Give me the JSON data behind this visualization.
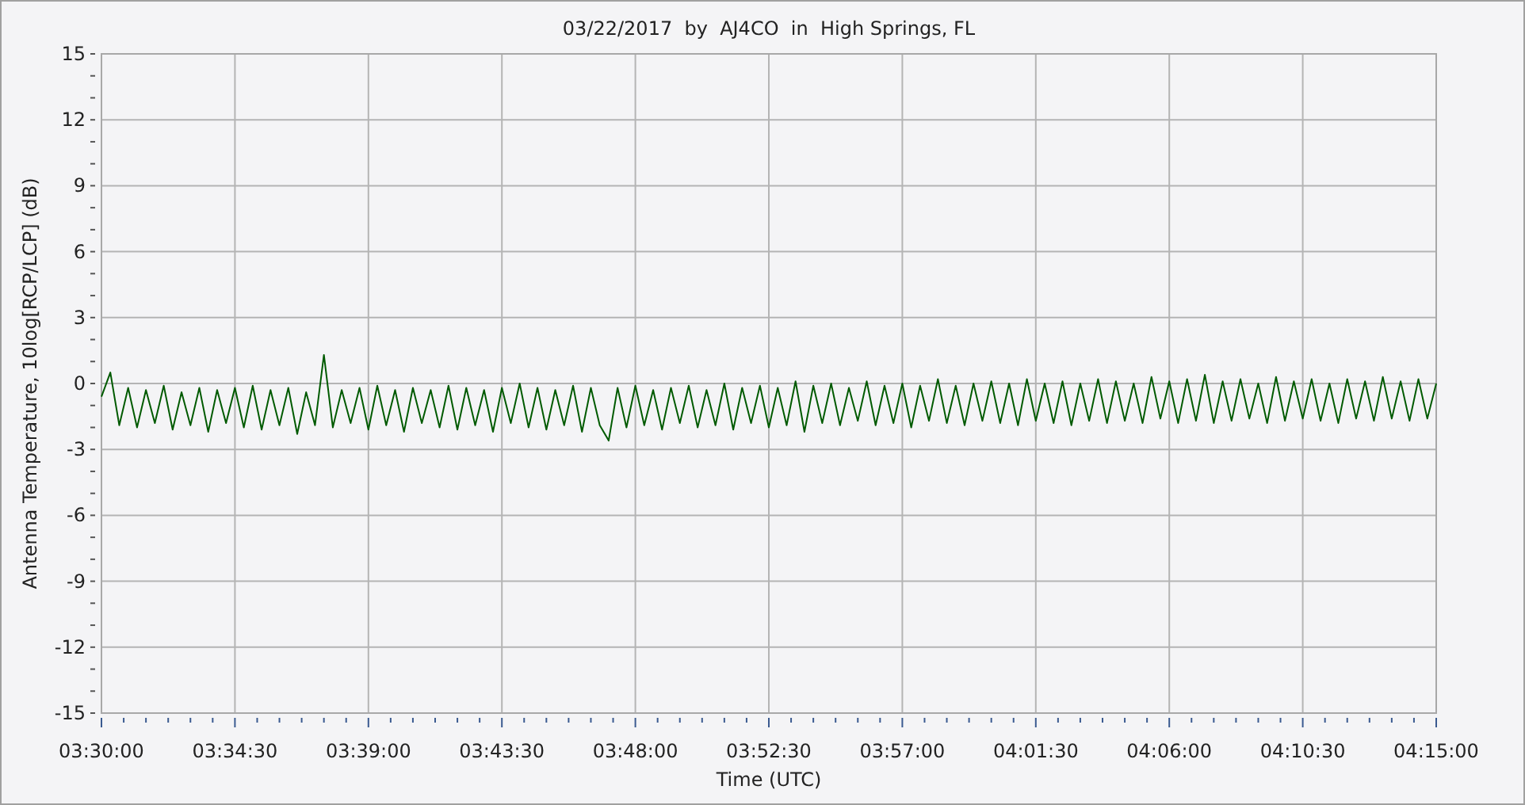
{
  "chart_data": {
    "type": "line",
    "title": "03/22/2017  by  AJ4CO  in  High Springs, FL",
    "xlabel": "Time (UTC)",
    "ylabel": "Antenna Temperature, 10log[RCP/LCP] (dB)",
    "xlim": [
      3.5,
      4.25
    ],
    "ylim": [
      -15,
      15
    ],
    "xticks": [
      {
        "value": 3.5,
        "label": "03:30:00"
      },
      {
        "value": 3.575,
        "label": "03:34:30"
      },
      {
        "value": 3.65,
        "label": "03:39:00"
      },
      {
        "value": 3.725,
        "label": "03:43:30"
      },
      {
        "value": 3.8,
        "label": "03:48:00"
      },
      {
        "value": 3.875,
        "label": "03:52:30"
      },
      {
        "value": 3.95,
        "label": "03:57:00"
      },
      {
        "value": 4.025,
        "label": "04:01:30"
      },
      {
        "value": 4.1,
        "label": "04:06:00"
      },
      {
        "value": 4.175,
        "label": "04:10:30"
      },
      {
        "value": 4.25,
        "label": "04:15:00"
      },
      {
        "value": 3.5125,
        "label": null
      },
      {
        "value": 3.525,
        "label": null
      },
      {
        "value": 3.5375,
        "label": null
      },
      {
        "value": 3.55,
        "label": null
      },
      {
        "value": 3.5625,
        "label": null
      },
      {
        "value": 3.5875,
        "label": null
      },
      {
        "value": 3.6,
        "label": null
      },
      {
        "value": 3.6125,
        "label": null
      },
      {
        "value": 3.625,
        "label": null
      },
      {
        "value": 3.6375,
        "label": null
      },
      {
        "value": 3.6625,
        "label": null
      },
      {
        "value": 3.675,
        "label": null
      },
      {
        "value": 3.6875,
        "label": null
      },
      {
        "value": 3.7,
        "label": null
      },
      {
        "value": 3.7125,
        "label": null
      },
      {
        "value": 3.7375,
        "label": null
      },
      {
        "value": 3.75,
        "label": null
      },
      {
        "value": 3.7625,
        "label": null
      },
      {
        "value": 3.775,
        "label": null
      },
      {
        "value": 3.7875,
        "label": null
      },
      {
        "value": 3.8125,
        "label": null
      },
      {
        "value": 3.825,
        "label": null
      },
      {
        "value": 3.8375,
        "label": null
      },
      {
        "value": 3.85,
        "label": null
      },
      {
        "value": 3.8625,
        "label": null
      },
      {
        "value": 3.8875,
        "label": null
      },
      {
        "value": 3.9,
        "label": null
      },
      {
        "value": 3.9125,
        "label": null
      },
      {
        "value": 3.925,
        "label": null
      },
      {
        "value": 3.9375,
        "label": null
      },
      {
        "value": 3.9625,
        "label": null
      },
      {
        "value": 3.975,
        "label": null
      },
      {
        "value": 3.9875,
        "label": null
      },
      {
        "value": 4.0,
        "label": null
      },
      {
        "value": 4.0125,
        "label": null
      },
      {
        "value": 4.0375,
        "label": null
      },
      {
        "value": 4.05,
        "label": null
      },
      {
        "value": 4.0625,
        "label": null
      },
      {
        "value": 4.075,
        "label": null
      },
      {
        "value": 4.0875,
        "label": null
      },
      {
        "value": 4.1125,
        "label": null
      },
      {
        "value": 4.125,
        "label": null
      },
      {
        "value": 4.1375,
        "label": null
      },
      {
        "value": 4.15,
        "label": null
      },
      {
        "value": 4.1625,
        "label": null
      },
      {
        "value": 4.1875,
        "label": null
      },
      {
        "value": 4.2,
        "label": null
      },
      {
        "value": 4.2125,
        "label": null
      },
      {
        "value": 4.225,
        "label": null
      },
      {
        "value": 4.2375,
        "label": null
      }
    ],
    "yticks": [
      -15,
      -12,
      -9,
      -6,
      -3,
      0,
      3,
      6,
      9,
      12,
      15,
      {
        "value": -14,
        "label": null
      },
      {
        "value": -13,
        "label": null
      },
      {
        "value": -11,
        "label": null
      },
      {
        "value": -10,
        "label": null
      },
      {
        "value": -8,
        "label": null
      },
      {
        "value": -7,
        "label": null
      },
      {
        "value": -5,
        "label": null
      },
      {
        "value": -4,
        "label": null
      },
      {
        "value": -2,
        "label": null
      },
      {
        "value": -1,
        "label": null
      },
      {
        "value": 1,
        "label": null
      },
      {
        "value": 2,
        "label": null
      },
      {
        "value": 4,
        "label": null
      },
      {
        "value": 5,
        "label": null
      },
      {
        "value": 7,
        "label": null
      },
      {
        "value": 8,
        "label": null
      },
      {
        "value": 10,
        "label": null
      },
      {
        "value": 11,
        "label": null
      },
      {
        "value": 13,
        "label": null
      },
      {
        "value": 14,
        "label": null
      }
    ],
    "grid": true,
    "line_style": "solid",
    "marker": "none",
    "x": [
      3.5,
      3.505,
      3.51,
      3.515,
      3.52,
      3.525,
      3.53,
      3.535,
      3.54,
      3.545,
      3.55,
      3.555,
      3.56,
      3.565,
      3.57,
      3.575,
      3.58,
      3.585,
      3.59,
      3.595,
      3.6,
      3.605,
      3.61,
      3.615,
      3.62,
      3.625,
      3.63,
      3.635,
      3.64,
      3.645,
      3.65,
      3.655,
      3.66,
      3.665,
      3.67,
      3.675,
      3.68,
      3.685,
      3.69,
      3.695,
      3.7,
      3.705,
      3.71,
      3.715,
      3.72,
      3.725,
      3.73,
      3.735,
      3.74,
      3.745,
      3.75,
      3.755,
      3.76,
      3.765,
      3.77,
      3.775,
      3.78,
      3.785,
      3.79,
      3.795,
      3.8,
      3.805,
      3.81,
      3.815,
      3.82,
      3.825,
      3.83,
      3.835,
      3.84,
      3.845,
      3.85,
      3.855,
      3.86,
      3.865,
      3.87,
      3.875,
      3.88,
      3.885,
      3.89,
      3.895,
      3.9,
      3.905,
      3.91,
      3.915,
      3.92,
      3.925,
      3.93,
      3.935,
      3.94,
      3.945,
      3.95,
      3.955,
      3.96,
      3.965,
      3.97,
      3.975,
      3.98,
      3.985,
      3.99,
      3.995,
      4.0,
      4.005,
      4.01,
      4.015,
      4.02,
      4.025,
      4.03,
      4.035,
      4.04,
      4.045,
      4.05,
      4.055,
      4.06,
      4.065,
      4.07,
      4.075,
      4.08,
      4.085,
      4.09,
      4.095,
      4.1,
      4.105,
      4.11,
      4.115,
      4.12,
      4.125,
      4.13,
      4.135,
      4.14,
      4.145,
      4.15,
      4.155,
      4.16,
      4.165,
      4.17,
      4.175,
      4.18,
      4.185,
      4.19,
      4.195,
      4.2,
      4.205,
      4.21,
      4.215,
      4.22,
      4.225,
      4.23,
      4.235,
      4.24,
      4.245,
      4.25
    ],
    "series": [
      {
        "color": "#005a00",
        "values": [
          -0.6,
          0.5,
          -1.9,
          -0.2,
          -2.0,
          -0.3,
          -1.8,
          -0.1,
          -2.1,
          -0.4,
          -1.9,
          -0.2,
          -2.2,
          -0.3,
          -1.8,
          -0.2,
          -2.0,
          -0.1,
          -2.1,
          -0.3,
          -1.9,
          -0.2,
          -2.3,
          -0.4,
          -1.9,
          1.3,
          -2.0,
          -0.3,
          -1.8,
          -0.2,
          -2.1,
          -0.1,
          -1.9,
          -0.3,
          -2.2,
          -0.2,
          -1.8,
          -0.3,
          -2.0,
          -0.1,
          -2.1,
          -0.2,
          -1.9,
          -0.3,
          -2.2,
          -0.2,
          -1.8,
          0.0,
          -2.0,
          -0.2,
          -2.1,
          -0.3,
          -1.9,
          -0.1,
          -2.2,
          -0.2,
          -1.9,
          -2.6,
          -0.2,
          -2.0,
          -0.1,
          -1.9,
          -0.3,
          -2.1,
          -0.2,
          -1.8,
          -0.1,
          -2.0,
          -0.3,
          -1.9,
          0.0,
          -2.1,
          -0.2,
          -1.8,
          -0.1,
          -2.0,
          -0.2,
          -1.9,
          0.1,
          -2.2,
          -0.1,
          -1.8,
          0.0,
          -1.9,
          -0.2,
          -1.7,
          0.1,
          -1.9,
          -0.1,
          -1.8,
          0.0,
          -2.0,
          -0.1,
          -1.7,
          0.2,
          -1.8,
          -0.1,
          -1.9,
          0.0,
          -1.7,
          0.1,
          -1.8,
          0.0,
          -1.9,
          0.2,
          -1.7,
          0.0,
          -1.8,
          0.1,
          -1.9,
          0.0,
          -1.7,
          0.2,
          -1.8,
          0.1,
          -1.7,
          0.0,
          -1.8,
          0.3,
          -1.6,
          0.1,
          -1.8,
          0.2,
          -1.7,
          0.4,
          -1.8,
          0.1,
          -1.7,
          0.2,
          -1.6,
          0.0,
          -1.8,
          0.3,
          -1.7,
          0.1,
          -1.6,
          0.2,
          -1.7,
          0.0,
          -1.8,
          0.2,
          -1.6,
          0.1,
          -1.7,
          0.3,
          -1.6,
          0.1,
          -1.7,
          0.2,
          -1.6,
          0.0
        ]
      }
    ]
  }
}
